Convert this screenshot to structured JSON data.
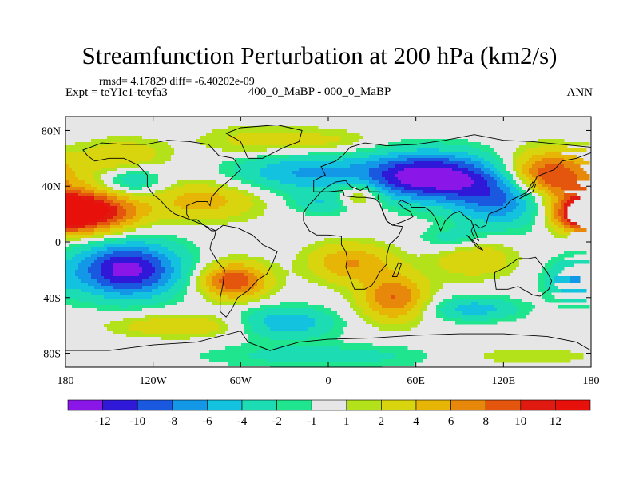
{
  "chart_data": {
    "type": "heatmap",
    "title": "Streamfunction Perturbation at 200 hPa (km2/s)",
    "stats_line": "rmsd= 4.17829 diff= -6.40202e-09",
    "left_label": "Expt = teYIc1-teyfa3",
    "center_label": "400_0_MaBP - 000_0_MaBP",
    "right_label": "ANN",
    "x_ticks": [
      "180",
      "120W",
      "60W",
      "0",
      "60E",
      "120E",
      "180"
    ],
    "x_values": [
      -180,
      -120,
      -60,
      0,
      60,
      120,
      180
    ],
    "y_ticks": [
      "80N",
      "40N",
      "0",
      "40S",
      "80S"
    ],
    "y_values": [
      80,
      40,
      0,
      -40,
      -80
    ],
    "xlim": [
      -180,
      180
    ],
    "ylim": [
      -90,
      90
    ],
    "colorbar": {
      "labels": [
        "-12",
        "-10",
        "-8",
        "-6",
        "-4",
        "-2",
        "-1",
        "1",
        "2",
        "4",
        "6",
        "8",
        "10",
        "12"
      ],
      "colors": [
        "#8a16e8",
        "#3018d8",
        "#1b58e0",
        "#1298e6",
        "#13c2df",
        "#1cdcb4",
        "#1fe58e",
        "#e6e6e6",
        "#b4e21a",
        "#d8d50e",
        "#e6b506",
        "#e8880a",
        "#e4560e",
        "#e01a10",
        "#e8100a"
      ]
    },
    "field_centers": [
      {
        "lon": 68,
        "lat": 47,
        "value": -14,
        "rlon": 32,
        "rlat": 12
      },
      {
        "lon": 120,
        "lat": 32,
        "value": -9,
        "rlon": 24,
        "rlat": 14
      },
      {
        "lon": -20,
        "lat": 50,
        "value": -6,
        "rlon": 34,
        "rlat": 10
      },
      {
        "lon": -135,
        "lat": 45,
        "value": -6,
        "rlon": 16,
        "rlat": 9
      },
      {
        "lon": -45,
        "lat": 72,
        "value": 3,
        "rlon": 30,
        "rlat": 8
      },
      {
        "lon": 5,
        "lat": 72,
        "value": 2,
        "rlon": 22,
        "rlat": 6
      },
      {
        "lon": 20,
        "lat": 33,
        "value": 6,
        "rlon": 12,
        "rlat": 7
      },
      {
        "lon": 0,
        "lat": 28,
        "value": -4,
        "rlon": 18,
        "rlat": 6
      },
      {
        "lon": -165,
        "lat": 22,
        "value": 14,
        "rlon": 24,
        "rlat": 11
      },
      {
        "lon": -140,
        "lat": 58,
        "value": 5,
        "rlon": 20,
        "rlat": 10
      },
      {
        "lon": -85,
        "lat": 30,
        "value": 5,
        "rlon": 28,
        "rlat": 10
      },
      {
        "lon": 150,
        "lat": 47,
        "value": 12,
        "rlon": 22,
        "rlat": 12
      },
      {
        "lon": 175,
        "lat": 20,
        "value": 10,
        "rlon": 14,
        "rlat": 8
      },
      {
        "lon": -138,
        "lat": -20,
        "value": -13,
        "rlon": 26,
        "rlat": 14
      },
      {
        "lon": -65,
        "lat": -28,
        "value": 10,
        "rlon": 16,
        "rlat": 9
      },
      {
        "lon": 15,
        "lat": -15,
        "value": 6,
        "rlon": 20,
        "rlat": 10
      },
      {
        "lon": 45,
        "lat": -40,
        "value": 8,
        "rlon": 16,
        "rlat": 12
      },
      {
        "lon": 100,
        "lat": -12,
        "value": 4,
        "rlon": 20,
        "rlat": 10
      },
      {
        "lon": 85,
        "lat": 2,
        "value": -3,
        "rlon": 16,
        "rlat": 6
      },
      {
        "lon": -30,
        "lat": -58,
        "value": -6,
        "rlon": 24,
        "rlat": 8
      },
      {
        "lon": 100,
        "lat": -48,
        "value": -5,
        "rlon": 22,
        "rlat": 6
      },
      {
        "lon": 165,
        "lat": -28,
        "value": -5,
        "rlon": 12,
        "rlat": 10
      },
      {
        "lon": -100,
        "lat": -60,
        "value": 4,
        "rlon": 34,
        "rlat": 6
      },
      {
        "lon": 0,
        "lat": -82,
        "value": -3,
        "rlon": 60,
        "rlat": 6
      },
      {
        "lon": 130,
        "lat": -82,
        "value": 2,
        "rlon": 40,
        "rlat": 5
      }
    ],
    "continents": [
      [
        [
          -168,
          66
        ],
        [
          -155,
          71
        ],
        [
          -140,
          70
        ],
        [
          -125,
          70
        ],
        [
          -110,
          73
        ],
        [
          -95,
          72
        ],
        [
          -82,
          70
        ],
        [
          -75,
          62
        ],
        [
          -65,
          60
        ],
        [
          -60,
          52
        ],
        [
          -67,
          45
        ],
        [
          -75,
          38
        ],
        [
          -80,
          32
        ],
        [
          -81,
          26
        ],
        [
          -83,
          29
        ],
        [
          -90,
          29
        ],
        [
          -97,
          26
        ],
        [
          -97,
          20
        ],
        [
          -95,
          16
        ],
        [
          -90,
          16
        ],
        [
          -85,
          12
        ],
        [
          -80,
          8
        ],
        [
          -77,
          8
        ],
        [
          -85,
          12
        ],
        [
          -92,
          15
        ],
        [
          -105,
          20
        ],
        [
          -110,
          24
        ],
        [
          -115,
          30
        ],
        [
          -120,
          34
        ],
        [
          -124,
          40
        ],
        [
          -124,
          48
        ],
        [
          -130,
          55
        ],
        [
          -140,
          60
        ],
        [
          -150,
          60
        ],
        [
          -160,
          58
        ],
        [
          -165,
          62
        ]
      ],
      [
        [
          -77,
          8
        ],
        [
          -72,
          12
        ],
        [
          -62,
          10
        ],
        [
          -52,
          5
        ],
        [
          -45,
          -2
        ],
        [
          -35,
          -7
        ],
        [
          -38,
          -15
        ],
        [
          -42,
          -23
        ],
        [
          -48,
          -27
        ],
        [
          -55,
          -35
        ],
        [
          -62,
          -40
        ],
        [
          -66,
          -48
        ],
        [
          -70,
          -54
        ],
        [
          -74,
          -50
        ],
        [
          -74,
          -40
        ],
        [
          -72,
          -30
        ],
        [
          -71,
          -20
        ],
        [
          -76,
          -14
        ],
        [
          -81,
          -5
        ],
        [
          -80,
          0
        ],
        [
          -78,
          3
        ]
      ],
      [
        [
          -55,
          60
        ],
        [
          -45,
          60
        ],
        [
          -30,
          68
        ],
        [
          -20,
          72
        ],
        [
          -18,
          80
        ],
        [
          -35,
          84
        ],
        [
          -60,
          82
        ],
        [
          -70,
          78
        ],
        [
          -60,
          72
        ]
      ],
      [
        [
          -10,
          36
        ],
        [
          -10,
          44
        ],
        [
          -2,
          48
        ],
        [
          -5,
          54
        ],
        [
          5,
          58
        ],
        [
          10,
          62
        ],
        [
          15,
          68
        ],
        [
          25,
          71
        ],
        [
          40,
          69
        ],
        [
          60,
          70
        ],
        [
          80,
          73
        ],
        [
          100,
          77
        ],
        [
          120,
          73
        ],
        [
          140,
          72
        ],
        [
          160,
          70
        ],
        [
          180,
          68
        ],
        [
          180,
          64
        ],
        [
          170,
          60
        ],
        [
          160,
          58
        ],
        [
          155,
          52
        ],
        [
          143,
          47
        ],
        [
          140,
          40
        ],
        [
          135,
          35
        ],
        [
          125,
          30
        ],
        [
          121,
          25
        ],
        [
          117,
          23
        ],
        [
          110,
          20
        ],
        [
          108,
          12
        ],
        [
          104,
          10
        ],
        [
          100,
          13
        ],
        [
          98,
          8
        ],
        [
          100,
          3
        ],
        [
          103,
          1
        ],
        [
          98,
          15
        ],
        [
          94,
          18
        ],
        [
          90,
          22
        ],
        [
          85,
          20
        ],
        [
          80,
          15
        ],
        [
          77,
          8
        ],
        [
          73,
          18
        ],
        [
          70,
          22
        ],
        [
          66,
          25
        ],
        [
          57,
          25
        ],
        [
          56,
          27
        ],
        [
          50,
          30
        ],
        [
          48,
          28
        ],
        [
          52,
          24
        ],
        [
          56,
          22
        ],
        [
          58,
          18
        ],
        [
          52,
          15
        ],
        [
          44,
          12
        ],
        [
          40,
          15
        ],
        [
          35,
          28
        ],
        [
          34,
          32
        ],
        [
          35,
          36
        ],
        [
          28,
          36
        ],
        [
          27,
          40
        ],
        [
          22,
          37
        ],
        [
          15,
          40
        ],
        [
          12,
          44
        ],
        [
          5,
          43
        ],
        [
          0,
          40
        ],
        [
          -5,
          36
        ]
      ],
      [
        [
          -17,
          21
        ],
        [
          -17,
          15
        ],
        [
          -13,
          8
        ],
        [
          -8,
          5
        ],
        [
          0,
          5
        ],
        [
          9,
          4
        ],
        [
          9,
          -2
        ],
        [
          12,
          -7
        ],
        [
          13,
          -12
        ],
        [
          12,
          -18
        ],
        [
          14,
          -23
        ],
        [
          16,
          -29
        ],
        [
          18,
          -34
        ],
        [
          25,
          -34
        ],
        [
          30,
          -31
        ],
        [
          33,
          -26
        ],
        [
          35,
          -22
        ],
        [
          40,
          -16
        ],
        [
          40,
          -10
        ],
        [
          42,
          -2
        ],
        [
          48,
          4
        ],
        [
          51,
          11
        ],
        [
          44,
          12
        ],
        [
          40,
          15
        ],
        [
          35,
          28
        ],
        [
          32,
          31
        ],
        [
          25,
          32
        ],
        [
          20,
          32
        ],
        [
          11,
          33
        ],
        [
          10,
          37
        ],
        [
          0,
          36
        ],
        [
          -5,
          36
        ],
        [
          -10,
          30
        ],
        [
          -13,
          27
        ]
      ],
      [
        [
          114,
          -22
        ],
        [
          122,
          -18
        ],
        [
          130,
          -12
        ],
        [
          137,
          -12
        ],
        [
          142,
          -11
        ],
        [
          145,
          -15
        ],
        [
          150,
          -22
        ],
        [
          153,
          -28
        ],
        [
          151,
          -34
        ],
        [
          145,
          -39
        ],
        [
          140,
          -38
        ],
        [
          135,
          -35
        ],
        [
          130,
          -32
        ],
        [
          123,
          -34
        ],
        [
          115,
          -34
        ],
        [
          114,
          -26
        ]
      ],
      [
        [
          -180,
          -78
        ],
        [
          -150,
          -78
        ],
        [
          -120,
          -74
        ],
        [
          -90,
          -72
        ],
        [
          -60,
          -64
        ],
        [
          -55,
          -72
        ],
        [
          -40,
          -78
        ],
        [
          -20,
          -72
        ],
        [
          0,
          -70
        ],
        [
          30,
          -69
        ],
        [
          60,
          -67
        ],
        [
          90,
          -66
        ],
        [
          120,
          -66
        ],
        [
          150,
          -68
        ],
        [
          170,
          -72
        ],
        [
          180,
          -78
        ],
        [
          180,
          -90
        ],
        [
          -180,
          -90
        ]
      ],
      [
        [
          44,
          -25
        ],
        [
          48,
          -15
        ],
        [
          50,
          -16
        ],
        [
          47,
          -25
        ]
      ],
      [
        [
          95,
          5
        ],
        [
          106,
          -6
        ],
        [
          102,
          -4
        ]
      ],
      [
        [
          131,
          31
        ],
        [
          140,
          36
        ],
        [
          142,
          41
        ],
        [
          140,
          43
        ],
        [
          135,
          34
        ]
      ]
    ]
  }
}
